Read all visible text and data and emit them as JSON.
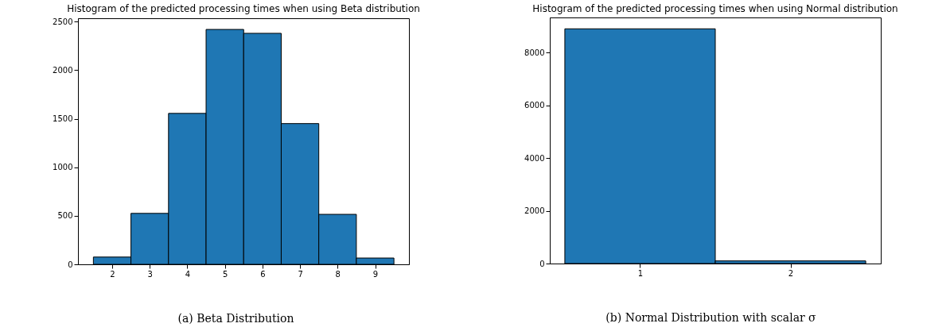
{
  "chart_data": [
    {
      "type": "histogram",
      "title": "Histogram of the predicted processing times when using Beta distribution",
      "bins": [
        1.5,
        2.5,
        3.5,
        4.5,
        5.5,
        6.5,
        7.5,
        8.5,
        9.5
      ],
      "values": [
        75,
        525,
        1555,
        2420,
        2380,
        1450,
        515,
        65
      ],
      "color": "#1f77b4",
      "xlim": [
        1.09,
        9.9
      ],
      "xticks": [
        2,
        3,
        4,
        5,
        6,
        7,
        8,
        9
      ],
      "ylim": [
        0,
        2535
      ],
      "yticks": [
        0,
        500,
        1000,
        1500,
        2000,
        2500
      ],
      "grid": false,
      "annotations": [
        "(a) Beta Distribution"
      ]
    },
    {
      "type": "histogram",
      "title": "Histogram of the predicted processing times when using Normal distribution",
      "bins": [
        0.5,
        1.5,
        2.5
      ],
      "values": [
        8900,
        100
      ],
      "color": "#1f77b4",
      "xlim": [
        0.4,
        2.6
      ],
      "xticks": [
        1,
        2
      ],
      "ylim": [
        0,
        9330
      ],
      "yticks": [
        0,
        2000,
        4000,
        6000,
        8000
      ],
      "grid": false,
      "annotations": [
        "(b) Normal Distribution with scalar σ"
      ]
    }
  ]
}
